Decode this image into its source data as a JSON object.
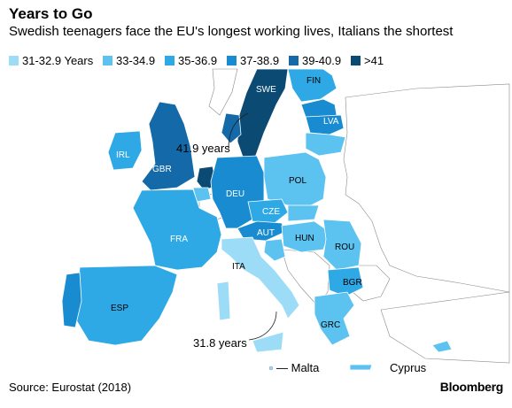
{
  "title": "Years to Go",
  "subtitle": "Swedish teenagers face the EU's longest working lives, Italians the shortest",
  "legend": [
    {
      "label": "31-32.9 Years",
      "color": "#9ddcf7"
    },
    {
      "label": "33-34.9",
      "color": "#5cc3f1"
    },
    {
      "label": "35-36.9",
      "color": "#2ea9e6"
    },
    {
      "label": "37-38.9",
      "color": "#198bd1"
    },
    {
      "label": "39-40.9",
      "color": "#1469a8"
    },
    {
      "label": ">41",
      "color": "#0b4b73"
    }
  ],
  "countries": {
    "swe": "SWE",
    "fin": "FIN",
    "lva": "LVA",
    "irl": "IRL",
    "gbr": "GBR",
    "deu": "DEU",
    "pol": "POL",
    "cze": "CZE",
    "fra": "FRA",
    "aut": "AUT",
    "hun": "HUN",
    "rou": "ROU",
    "ita": "ITA",
    "bgr": "BGR",
    "esp": "ESP",
    "grc": "GRC"
  },
  "annotations": {
    "sweden": "41.9 years",
    "italy": "31.8 years",
    "malta": "— Malta",
    "cyprus": "Cyprus"
  },
  "source": "Source: Eurostat (2018)",
  "brand": "Bloomberg",
  "colors": {
    "non_eu": "#ffffff",
    "border": "#8a8a8a"
  }
}
